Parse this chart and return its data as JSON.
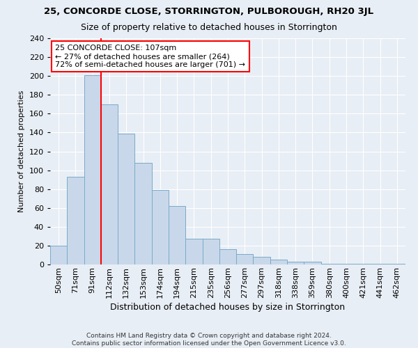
{
  "title": "25, CONCORDE CLOSE, STORRINGTON, PULBOROUGH, RH20 3JL",
  "subtitle": "Size of property relative to detached houses in Storrington",
  "xlabel": "Distribution of detached houses by size in Storrington",
  "ylabel": "Number of detached properties",
  "categories": [
    "50sqm",
    "71sqm",
    "91sqm",
    "112sqm",
    "132sqm",
    "153sqm",
    "174sqm",
    "194sqm",
    "215sqm",
    "235sqm",
    "256sqm",
    "277sqm",
    "297sqm",
    "318sqm",
    "338sqm",
    "359sqm",
    "380sqm",
    "400sqm",
    "421sqm",
    "441sqm",
    "462sqm"
  ],
  "bar_values": [
    20,
    93,
    201,
    170,
    139,
    108,
    79,
    62,
    27,
    27,
    16,
    11,
    8,
    5,
    3,
    3,
    1,
    1,
    1,
    1,
    1
  ],
  "bar_color": "#c8d8ea",
  "bar_edge_color": "#7aaac8",
  "vline_x": 3.0,
  "vline_color": "red",
  "ann_line1": "25 CONCORDE CLOSE: 107sqm",
  "ann_line2": "← 27% of detached houses are smaller (264)",
  "ann_line3": "72% of semi-detached houses are larger (701) →",
  "ann_box_fc": "white",
  "ann_box_ec": "red",
  "footer_line1": "Contains HM Land Registry data © Crown copyright and database right 2024.",
  "footer_line2": "Contains public sector information licensed under the Open Government Licence v3.0.",
  "bg_color": "#e8eef5",
  "ylim": [
    0,
    240
  ],
  "yticks": [
    0,
    20,
    40,
    60,
    80,
    100,
    120,
    140,
    160,
    180,
    200,
    220,
    240
  ],
  "title_fontsize": 9.5,
  "subtitle_fontsize": 9,
  "ylabel_fontsize": 8,
  "xlabel_fontsize": 9,
  "tick_fontsize": 8,
  "footer_fontsize": 6.5
}
